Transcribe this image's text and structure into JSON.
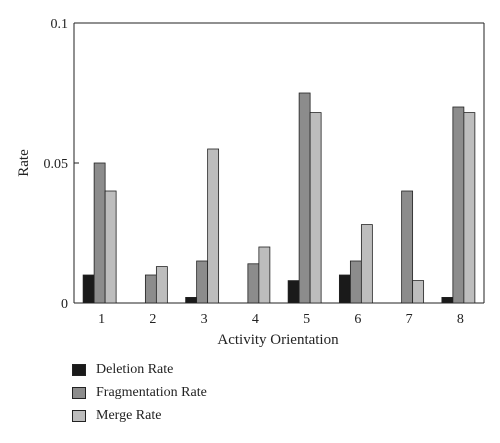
{
  "chart_data": {
    "type": "bar",
    "title": "",
    "xlabel": "Activity Orientation",
    "ylabel": "Rate",
    "categories": [
      "1",
      "2",
      "3",
      "4",
      "5",
      "6",
      "7",
      "8"
    ],
    "ylim": [
      0,
      0.1
    ],
    "yticks": [
      {
        "value": 0,
        "label": "0"
      },
      {
        "value": 0.05,
        "label": "0.05"
      },
      {
        "value": 0.1,
        "label": "0.1"
      }
    ],
    "grid": false,
    "legend_position": "below",
    "series": [
      {
        "name": "Deletion Rate",
        "color": "#1a1a1a",
        "values": [
          0.01,
          0.0,
          0.002,
          0.0,
          0.008,
          0.01,
          0.0,
          0.002
        ]
      },
      {
        "name": "Fragmentation Rate",
        "color": "#8c8c8c",
        "values": [
          0.05,
          0.01,
          0.015,
          0.014,
          0.075,
          0.015,
          0.04,
          0.07
        ]
      },
      {
        "name": "Merge Rate",
        "color": "#bdbdbd",
        "values": [
          0.04,
          0.013,
          0.055,
          0.02,
          0.068,
          0.028,
          0.008,
          0.068
        ]
      }
    ]
  }
}
